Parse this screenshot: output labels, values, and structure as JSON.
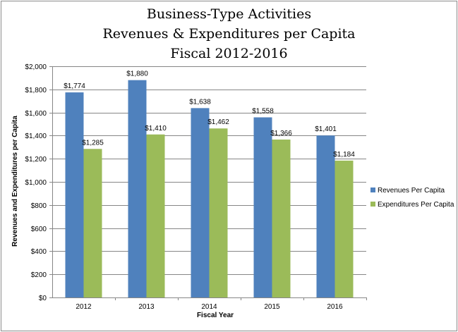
{
  "chart_data": {
    "type": "bar",
    "title_lines": [
      "Business-Type Activities",
      "Revenues & Expenditures per Capita",
      "Fiscal 2012-2016"
    ],
    "xlabel": "Fiscal Year",
    "ylabel": "Revenues and Expenditures per Capita",
    "categories": [
      "2012",
      "2013",
      "2014",
      "2015",
      "2016"
    ],
    "ylim": [
      0,
      2000
    ],
    "yticks": [
      0,
      200,
      400,
      600,
      800,
      1000,
      1200,
      1400,
      1600,
      1800,
      2000
    ],
    "ytick_labels": [
      "$0",
      "$200",
      "$400",
      "$600",
      "$800",
      "$1,000",
      "$1,200",
      "$1,400",
      "$1,600",
      "$1,800",
      "$2,000"
    ],
    "grid": true,
    "legend_position": "right",
    "series": [
      {
        "name": "Revenues Per Capita",
        "color": "#4f81bd",
        "values": [
          1774,
          1880,
          1638,
          1558,
          1401
        ],
        "labels": [
          "$1,774",
          "$1,880",
          "$1,638",
          "$1,558",
          "$1,401"
        ]
      },
      {
        "name": "Expenditures Per Capita",
        "color": "#9bbb59",
        "values": [
          1285,
          1410,
          1462,
          1366,
          1184
        ],
        "labels": [
          "$1,285",
          "$1,410",
          "$1,462",
          "$1,366",
          "$1,184"
        ]
      }
    ]
  }
}
